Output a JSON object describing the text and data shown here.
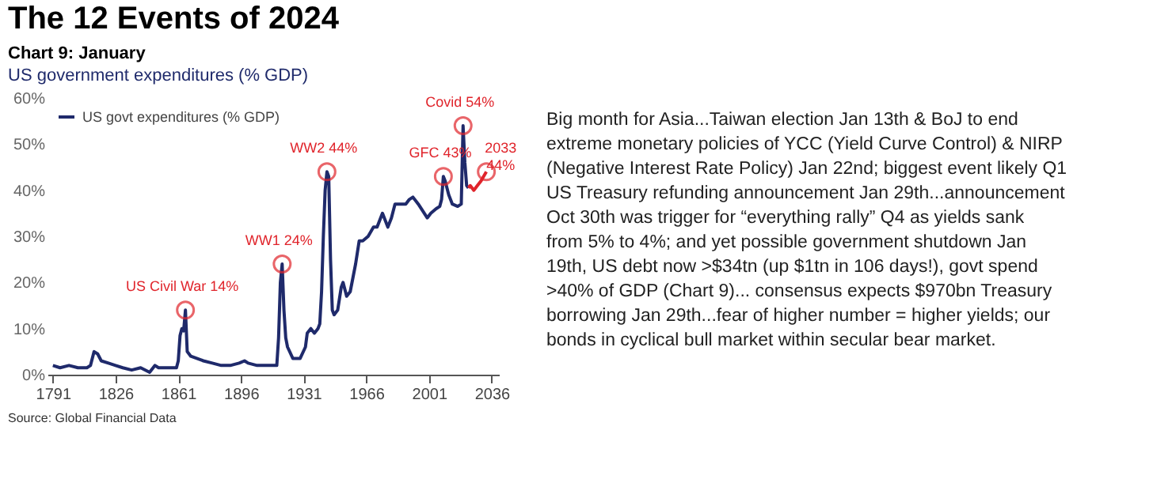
{
  "chart_data": {
    "type": "line",
    "title": "Chart 9: January",
    "subtitle": "US government expenditures (% GDP)",
    "xlim": [
      1788,
      2040
    ],
    "xticks": [
      1791,
      1826,
      1861,
      1896,
      1931,
      1966,
      2001,
      2036
    ],
    "ylim": [
      0,
      60
    ],
    "yticks": [
      {
        "value": 0,
        "label": "0%"
      },
      {
        "value": 10,
        "label": "10%"
      },
      {
        "value": 20,
        "label": "20%"
      },
      {
        "value": 30,
        "label": "30%"
      },
      {
        "value": 40,
        "label": "40%"
      },
      {
        "value": 50,
        "label": "50%"
      },
      {
        "value": 60,
        "label": "60%"
      }
    ],
    "grid": false,
    "legend": "top left",
    "marker": "none",
    "line_style": "solid",
    "series": [
      {
        "name": "US govt expenditures (% GDP)",
        "color": "#1f2a6b",
        "x": [
          1791,
          1795,
          1800,
          1805,
          1810,
          1812,
          1814,
          1816,
          1818,
          1822,
          1826,
          1830,
          1835,
          1840,
          1845,
          1848,
          1850,
          1855,
          1860,
          1861,
          1862,
          1863,
          1864,
          1865,
          1866,
          1868,
          1875,
          1880,
          1885,
          1890,
          1895,
          1898,
          1900,
          1905,
          1910,
          1916,
          1917,
          1918,
          1919,
          1920,
          1921,
          1922,
          1925,
          1929,
          1932,
          1933,
          1935,
          1937,
          1939,
          1940,
          1941,
          1942,
          1943,
          1944,
          1945,
          1946,
          1947,
          1948,
          1950,
          1952,
          1953,
          1955,
          1957,
          1960,
          1962,
          1964,
          1967,
          1970,
          1972,
          1975,
          1978,
          1980,
          1982,
          1984,
          1986,
          1988,
          1990,
          1992,
          1995,
          2000,
          2002,
          2005,
          2007,
          2008,
          2009,
          2010,
          2012,
          2014,
          2017,
          2019,
          2020,
          2021,
          2022,
          2023
        ],
        "values": [
          2,
          1.5,
          2,
          1.5,
          1.5,
          2,
          5,
          4.5,
          3,
          2.5,
          2,
          1.5,
          1,
          1.5,
          0.5,
          2,
          1.5,
          1.5,
          1.5,
          3,
          8.5,
          10,
          9.5,
          14,
          5,
          4,
          3,
          2.5,
          2,
          2,
          2.5,
          3,
          2.5,
          2,
          2,
          2,
          8,
          20,
          24,
          14,
          8,
          6,
          3.5,
          3.5,
          6,
          9,
          10,
          9,
          10,
          11,
          18,
          30,
          40,
          44,
          43,
          25,
          14,
          13,
          14,
          19,
          20,
          17,
          18,
          24,
          29,
          29,
          30,
          32,
          32,
          35,
          32,
          34,
          37,
          37,
          37,
          37,
          38,
          38.5,
          37,
          34,
          35,
          36,
          36.5,
          38,
          43,
          42,
          39,
          37,
          36.5,
          37,
          54,
          46,
          41,
          40.5
        ]
      },
      {
        "color": "#e0242b",
        "x": [
          2023,
          2024,
          2026,
          2028,
          2030,
          2033
        ],
        "values": [
          40.5,
          41,
          40,
          41,
          42,
          44
        ]
      }
    ],
    "annotations": [
      "The 12 Events of 2024",
      {
        "text": "US Civil War 14%",
        "x": 1865,
        "y": 14
      },
      {
        "text": "WW1 24%",
        "x": 1919,
        "y": 24
      },
      {
        "text": "WW2 44%",
        "x": 1944,
        "y": 44
      },
      {
        "text": "GFC 43%",
        "x": 2009,
        "y": 43
      },
      {
        "text": "Covid 54%",
        "x": 2020,
        "y": 54
      },
      {
        "text": "2033 44%",
        "x": 2033,
        "y": 44
      },
      "Source: Global Financial Data",
      "Big month for Asia...Taiwan election Jan 13th & BoJ to end",
      "extreme monetary policies of YCC (Yield Curve Control) & NIRP",
      "(Negative Interest Rate Policy) Jan 22nd; biggest event likely Q1",
      "US Treasury refunding announcement Jan 29th...announcement",
      "Oct 30th was trigger for “everything rally” Q4 as yields sank",
      "from 5% to 4%; and yet possible government shutdown Jan",
      "19th, US debt now >$34tn (up $1tn in 106 days!), govt spend",
      ">40% of GDP (Chart 9)... consensus expects $970bn Treasury",
      "borrowing Jan 29th...fear of higher number = higher yields; our",
      "bonds in cyclical bull market within secular bear market."
    ]
  }
}
